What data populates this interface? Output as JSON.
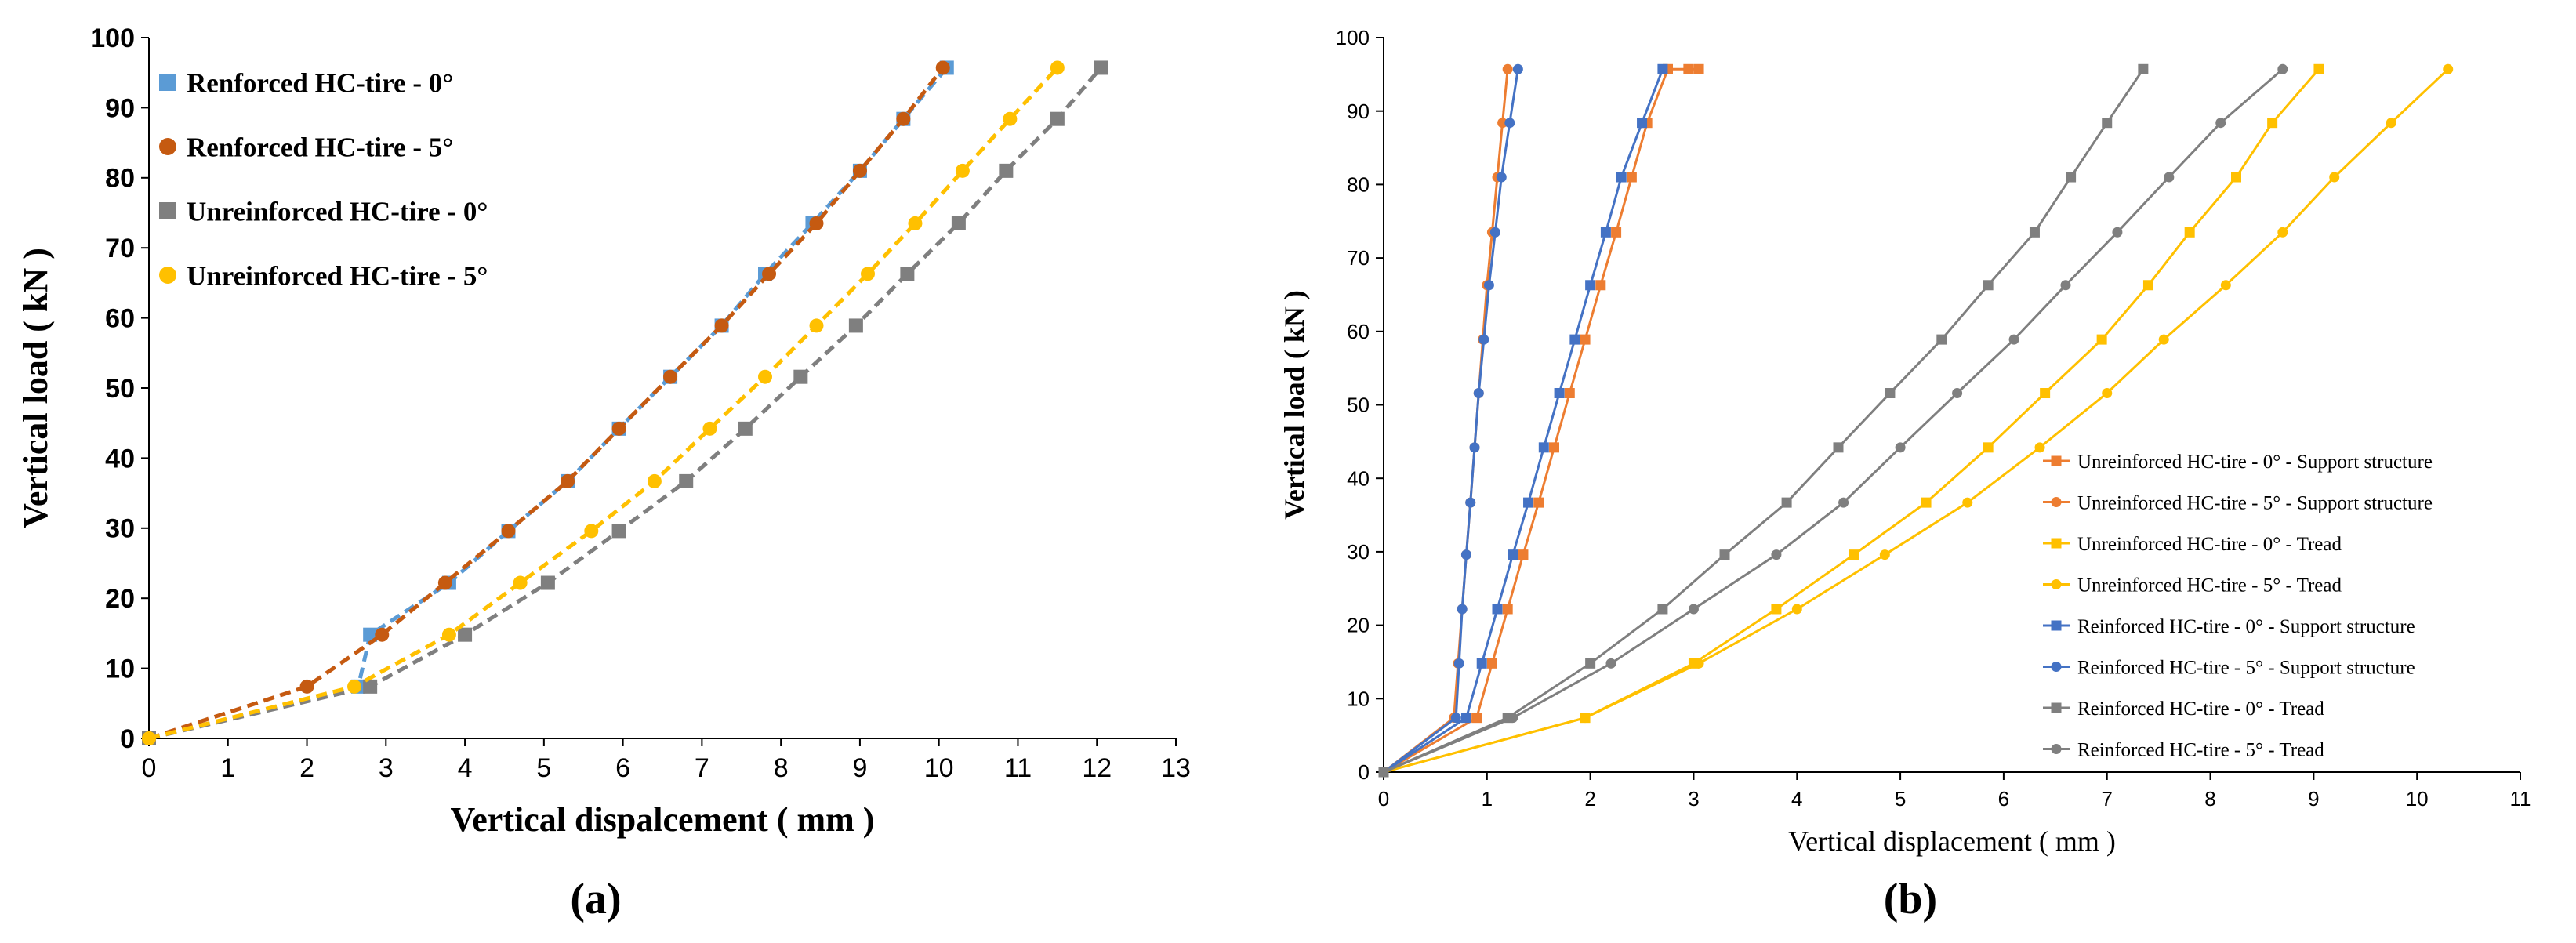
{
  "chart_data": [
    {
      "type": "line",
      "panel_label": "(a)",
      "xlabel": "Vertical dispalcement ( mm )",
      "ylabel": "Vertical load ( kN )",
      "xlim": [
        0,
        13
      ],
      "ylim": [
        0,
        100
      ],
      "xticks": [
        0,
        1,
        2,
        3,
        4,
        5,
        6,
        7,
        8,
        9,
        10,
        11,
        12,
        13
      ],
      "yticks": [
        0,
        10,
        20,
        30,
        40,
        50,
        60,
        70,
        80,
        90,
        100
      ],
      "legend_position": "top-left",
      "series": [
        {
          "name": "Renforced HC-tire - 0°",
          "color": "#5b9bd5",
          "marker": "square",
          "x": [
            0,
            2.65,
            2.8,
            3.8,
            4.55,
            5.3,
            5.95,
            6.6,
            7.25,
            7.8,
            8.4,
            9.0,
            9.55,
            10.1
          ],
          "y": [
            0,
            7.4,
            14.8,
            22.2,
            29.6,
            36.7,
            44.2,
            51.6,
            58.9,
            66.3,
            73.5,
            81.0,
            88.4,
            95.7
          ]
        },
        {
          "name": "Renforced HC-tire - 5°",
          "color": "#c55a11",
          "marker": "circle",
          "x": [
            0,
            2.0,
            2.95,
            3.75,
            4.55,
            5.3,
            5.95,
            6.6,
            7.25,
            7.85,
            8.45,
            9.0,
            9.55,
            10.05
          ],
          "y": [
            0,
            7.4,
            14.8,
            22.2,
            29.6,
            36.7,
            44.2,
            51.6,
            58.9,
            66.3,
            73.5,
            81.0,
            88.4,
            95.7
          ]
        },
        {
          "name": "Unreinforced HC-tire - 0°",
          "color": "#7f7f7f",
          "marker": "square",
          "x": [
            0,
            2.8,
            4.0,
            5.05,
            5.95,
            6.8,
            7.55,
            8.25,
            8.95,
            9.6,
            10.25,
            10.85,
            11.5,
            12.05
          ],
          "y": [
            0,
            7.4,
            14.8,
            22.2,
            29.6,
            36.7,
            44.2,
            51.6,
            58.9,
            66.3,
            73.5,
            81.0,
            88.4,
            95.7
          ]
        },
        {
          "name": "Unreinforced HC-tire - 5°",
          "color": "#ffc000",
          "marker": "circle",
          "x": [
            0,
            2.6,
            3.8,
            4.7,
            5.6,
            6.4,
            7.1,
            7.8,
            8.45,
            9.1,
            9.7,
            10.3,
            10.9,
            11.5
          ],
          "y": [
            0,
            7.4,
            14.8,
            22.2,
            29.6,
            36.7,
            44.2,
            51.6,
            58.9,
            66.3,
            73.5,
            81.0,
            88.4,
            95.7
          ]
        }
      ]
    },
    {
      "type": "line",
      "panel_label": "(b)",
      "xlabel": "Vertical displacement ( mm )",
      "ylabel": "Vertical load ( kN )",
      "xlim": [
        0,
        11
      ],
      "ylim": [
        0,
        100
      ],
      "xticks": [
        0,
        1,
        2,
        3,
        4,
        5,
        6,
        7,
        8,
        9,
        10,
        11
      ],
      "yticks": [
        0,
        10,
        20,
        30,
        40,
        50,
        60,
        70,
        80,
        90,
        100
      ],
      "legend_position": "bottom-right",
      "series": [
        {
          "name": "Unreinforced HC-tire - 0° - Support structure",
          "color": "#ed7d31",
          "marker": "square",
          "x": [
            0,
            0.9,
            1.05,
            1.2,
            1.35,
            1.5,
            1.65,
            1.8,
            1.95,
            2.1,
            2.25,
            2.4,
            2.55,
            2.75,
            2.95,
            3.05
          ],
          "y": [
            0,
            7.4,
            14.8,
            22.2,
            29.6,
            36.7,
            44.2,
            51.6,
            58.9,
            66.3,
            73.5,
            81.0,
            88.4,
            95.7,
            95.7,
            95.7
          ]
        },
        {
          "name": "Unreinforced HC-tire - 5° - Support structure",
          "color": "#ed7d31",
          "marker": "circle",
          "x": [
            0,
            0.68,
            0.72,
            0.76,
            0.8,
            0.84,
            0.88,
            0.92,
            0.96,
            1.0,
            1.05,
            1.1,
            1.15,
            1.2
          ],
          "y": [
            0,
            7.4,
            14.8,
            22.2,
            29.6,
            36.7,
            44.2,
            51.6,
            58.9,
            66.3,
            73.5,
            81.0,
            88.4,
            95.7
          ]
        },
        {
          "name": "Unreinforced HC-tire - 0° - Tread",
          "color": "#ffc000",
          "marker": "square",
          "x": [
            0,
            1.95,
            3.0,
            3.8,
            4.55,
            5.25,
            5.85,
            6.4,
            6.95,
            7.4,
            7.8,
            8.25,
            8.6,
            9.05
          ],
          "y": [
            0,
            7.4,
            14.8,
            22.2,
            29.6,
            36.7,
            44.2,
            51.6,
            58.9,
            66.3,
            73.5,
            81.0,
            88.4,
            95.7
          ]
        },
        {
          "name": "Unreinforced HC-tire - 5° - Tread",
          "color": "#ffc000",
          "marker": "circle",
          "x": [
            0,
            1.95,
            3.05,
            4.0,
            4.85,
            5.65,
            6.35,
            7.0,
            7.55,
            8.15,
            8.7,
            9.2,
            9.75,
            10.3
          ],
          "y": [
            0,
            7.4,
            14.8,
            22.2,
            29.6,
            36.7,
            44.2,
            51.6,
            58.9,
            66.3,
            73.5,
            81.0,
            88.4,
            95.7
          ]
        },
        {
          "name": "Reinforced HC-tire - 0° - Support structure",
          "color": "#4472c4",
          "marker": "square",
          "x": [
            0,
            0.8,
            0.95,
            1.1,
            1.25,
            1.4,
            1.55,
            1.7,
            1.85,
            2.0,
            2.15,
            2.3,
            2.5,
            2.7
          ],
          "y": [
            0,
            7.4,
            14.8,
            22.2,
            29.6,
            36.7,
            44.2,
            51.6,
            58.9,
            66.3,
            73.5,
            81.0,
            88.4,
            95.7
          ]
        },
        {
          "name": "Reinforced HC-tire - 5° - Support structure",
          "color": "#4472c4",
          "marker": "circle",
          "x": [
            0,
            0.7,
            0.73,
            0.76,
            0.8,
            0.84,
            0.88,
            0.92,
            0.97,
            1.02,
            1.08,
            1.14,
            1.22,
            1.3
          ],
          "y": [
            0,
            7.4,
            14.8,
            22.2,
            29.6,
            36.7,
            44.2,
            51.6,
            58.9,
            66.3,
            73.5,
            81.0,
            88.4,
            95.7
          ]
        },
        {
          "name": "Reinforced HC-tire - 0° - Tread",
          "color": "#7f7f7f",
          "marker": "square",
          "x": [
            0,
            1.2,
            2.0,
            2.7,
            3.3,
            3.9,
            4.4,
            4.9,
            5.4,
            5.85,
            6.3,
            6.65,
            7.0,
            7.35
          ],
          "y": [
            0,
            7.4,
            14.8,
            22.2,
            29.6,
            36.7,
            44.2,
            51.6,
            58.9,
            66.3,
            73.5,
            81.0,
            88.4,
            95.7
          ]
        },
        {
          "name": "Reinforced HC-tire - 5° - Tread",
          "color": "#7f7f7f",
          "marker": "circle",
          "x": [
            0,
            1.25,
            2.2,
            3.0,
            3.8,
            4.45,
            5.0,
            5.55,
            6.1,
            6.6,
            7.1,
            7.6,
            8.1,
            8.7
          ],
          "y": [
            0,
            7.4,
            14.8,
            22.2,
            29.6,
            36.7,
            44.2,
            51.6,
            58.9,
            66.3,
            73.5,
            81.0,
            88.4,
            95.7
          ]
        }
      ]
    }
  ]
}
